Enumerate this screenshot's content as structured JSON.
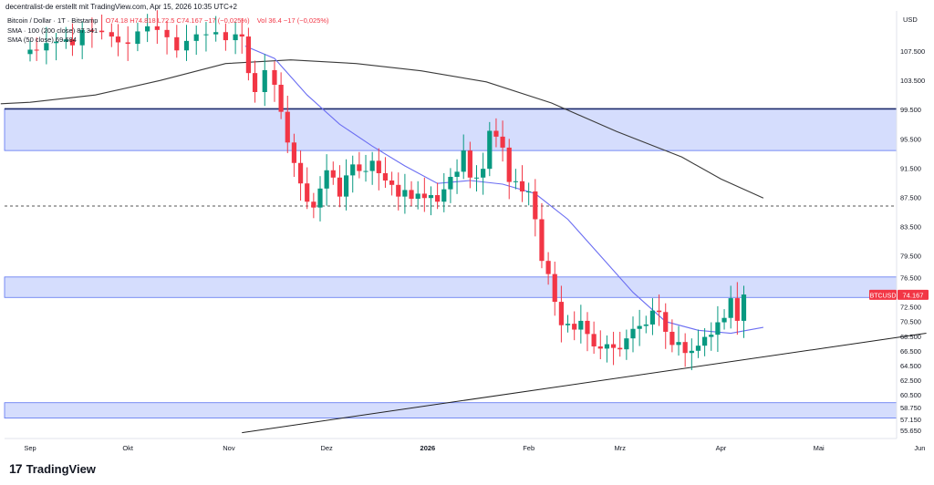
{
  "header": {
    "credit": "decentralist-de erstellt mit TradingView.com, Apr 15, 2026 10:35 UTC+2",
    "symbol_line": "Bitcoin / Dollar · 1T · Bitstamp",
    "ohlc": "O74.18 H74.818 L72.5 C74.167 −17 (−0,025%)",
    "vol": "Vol 36.4 −17 (−0,025%)",
    "sma1": "SMA · 100 (200 close) 87.341",
    "sma2": "SMA (50 close) 69.684"
  },
  "brand": {
    "logo": "17",
    "name": "TradingView"
  },
  "chart_data": {
    "type": "candlestick",
    "symbol": "BTCUSD",
    "currency": "USD",
    "last_price": 74.167,
    "last_price_label": "74.167",
    "y_range": [
      54.5,
      113.0
    ],
    "y_ticks": [
      {
        "v": 107.5,
        "label": "107.500"
      },
      {
        "v": 103.5,
        "label": "103.500"
      },
      {
        "v": 99.5,
        "label": "99.500"
      },
      {
        "v": 95.5,
        "label": "95.500"
      },
      {
        "v": 91.5,
        "label": "91.500"
      },
      {
        "v": 87.5,
        "label": "87.500"
      },
      {
        "v": 83.5,
        "label": "83.500"
      },
      {
        "v": 79.5,
        "label": "79.500"
      },
      {
        "v": 76.5,
        "label": "76.500"
      },
      {
        "v": 72.5,
        "label": "72.500"
      },
      {
        "v": 70.5,
        "label": "70.500"
      },
      {
        "v": 68.5,
        "label": "68.500"
      },
      {
        "v": 66.5,
        "label": "66.500"
      },
      {
        "v": 64.5,
        "label": "64.500"
      },
      {
        "v": 62.5,
        "label": "62.500"
      },
      {
        "v": 60.5,
        "label": "60.500"
      },
      {
        "v": 58.75,
        "label": "58.750"
      },
      {
        "v": 57.15,
        "label": "57.150"
      },
      {
        "v": 55.65,
        "label": "55.650"
      }
    ],
    "x_ticks": [
      {
        "label": "Sep",
        "day": 0
      },
      {
        "label": "Okt",
        "day": 30
      },
      {
        "label": "Nov",
        "day": 61
      },
      {
        "label": "Dez",
        "day": 91
      },
      {
        "label": "2026",
        "day": 122
      },
      {
        "label": "Feb",
        "day": 153
      },
      {
        "label": "Mrz",
        "day": 181
      },
      {
        "label": "Apr",
        "day": 212
      },
      {
        "label": "Mai",
        "day": 242
      },
      {
        "label": "Jun",
        "day": 273
      }
    ],
    "zones": [
      {
        "from": 93.9,
        "to": 99.6
      },
      {
        "from": 73.8,
        "to": 76.6
      },
      {
        "from": 57.3,
        "to": 59.4
      }
    ],
    "levels": [
      {
        "value": 99.6,
        "style": "solid"
      },
      {
        "value": 86.3,
        "style": "dashed"
      }
    ],
    "trendline": {
      "start": {
        "day": 65,
        "value": 55.3
      },
      "end": {
        "day": 275,
        "value": 68.9
      }
    },
    "sma_long": [
      [
        0,
        100.5
      ],
      [
        20,
        101.5
      ],
      [
        40,
        103.5
      ],
      [
        60,
        105.8
      ],
      [
        80,
        106.3
      ],
      [
        100,
        105.8
      ],
      [
        120,
        104.8
      ],
      [
        140,
        103.3
      ],
      [
        160,
        100.4
      ],
      [
        180,
        96.5
      ],
      [
        200,
        93.0
      ],
      [
        212,
        90.0
      ],
      [
        225,
        87.4
      ]
    ],
    "sma_short": [
      [
        66,
        108.2
      ],
      [
        75,
        106.5
      ],
      [
        85,
        101.5
      ],
      [
        95,
        97.5
      ],
      [
        105,
        94.5
      ],
      [
        115,
        91.8
      ],
      [
        125,
        89.4
      ],
      [
        135,
        89.8
      ],
      [
        145,
        89.3
      ],
      [
        155,
        88.0
      ],
      [
        165,
        84.5
      ],
      [
        175,
        79.5
      ],
      [
        185,
        74.5
      ],
      [
        195,
        70.5
      ],
      [
        205,
        69.3
      ],
      [
        215,
        68.9
      ],
      [
        225,
        69.7
      ]
    ],
    "candles": [
      [
        0,
        107.7
      ],
      [
        2,
        107.6
      ],
      [
        5,
        108.6
      ],
      [
        8,
        108.8
      ],
      [
        11,
        109.1
      ],
      [
        13,
        108.3
      ],
      [
        16,
        110.4
      ],
      [
        19,
        110.3
      ],
      [
        22,
        110.1
      ],
      [
        25,
        109.5
      ],
      [
        27,
        108.7
      ],
      [
        30,
        108.5
      ],
      [
        33,
        110.2
      ],
      [
        36,
        110.9
      ],
      [
        39,
        110.4
      ],
      [
        42,
        109.4
      ],
      [
        45,
        107.6
      ],
      [
        48,
        108.9
      ],
      [
        51,
        109.8
      ],
      [
        54,
        109.8
      ],
      [
        57,
        110.1
      ],
      [
        60,
        109.0
      ],
      [
        63,
        109.8
      ],
      [
        65,
        109.5
      ],
      [
        67,
        104.5
      ],
      [
        69,
        101.9
      ],
      [
        72,
        104.9
      ],
      [
        75,
        102.9
      ],
      [
        77,
        99.2
      ],
      [
        79,
        95.0
      ],
      [
        81,
        92.2
      ],
      [
        83,
        89.4
      ],
      [
        85,
        86.9
      ],
      [
        87,
        86.1
      ],
      [
        89,
        88.7
      ],
      [
        91,
        91.2
      ],
      [
        93,
        90.2
      ],
      [
        95,
        87.6
      ],
      [
        97,
        90.5
      ],
      [
        99,
        92.0
      ],
      [
        101,
        91.1
      ],
      [
        103,
        91.1
      ],
      [
        105,
        92.5
      ],
      [
        107,
        90.8
      ],
      [
        109,
        89.8
      ],
      [
        111,
        89.2
      ],
      [
        113,
        87.6
      ],
      [
        115,
        88.5
      ],
      [
        117,
        87.3
      ],
      [
        119,
        88.0
      ],
      [
        121,
        87.4
      ],
      [
        123,
        87.8
      ],
      [
        125,
        86.9
      ],
      [
        127,
        88.6
      ],
      [
        129,
        90.3
      ],
      [
        131,
        91.0
      ],
      [
        133,
        93.9
      ],
      [
        135,
        90.2
      ],
      [
        137,
        90.2
      ],
      [
        139,
        91.4
      ],
      [
        141,
        96.6
      ],
      [
        143,
        95.8
      ],
      [
        145,
        94.3
      ],
      [
        147,
        89.6
      ],
      [
        149,
        89.7
      ],
      [
        151,
        88.3
      ],
      [
        153,
        88.3
      ],
      [
        155,
        84.5
      ],
      [
        157,
        78.8
      ],
      [
        159,
        77.0
      ],
      [
        161,
        73.2
      ],
      [
        163,
        70.0
      ],
      [
        165,
        70.2
      ],
      [
        167,
        69.4
      ],
      [
        169,
        70.6
      ],
      [
        171,
        68.8
      ],
      [
        173,
        67.1
      ],
      [
        175,
        66.8
      ],
      [
        177,
        67.4
      ],
      [
        179,
        66.9
      ],
      [
        181,
        66.7
      ],
      [
        183,
        68.2
      ],
      [
        185,
        69.5
      ],
      [
        187,
        69.9
      ],
      [
        189,
        70.1
      ],
      [
        191,
        72.0
      ],
      [
        193,
        71.8
      ],
      [
        195,
        69.1
      ],
      [
        197,
        67.3
      ],
      [
        199,
        67.7
      ],
      [
        201,
        66.2
      ],
      [
        203,
        66.5
      ],
      [
        205,
        67.2
      ],
      [
        207,
        68.4
      ],
      [
        209,
        68.7
      ],
      [
        211,
        70.4
      ],
      [
        213,
        71.0
      ],
      [
        215,
        73.7
      ],
      [
        217,
        70.6
      ],
      [
        219,
        74.2
      ]
    ]
  }
}
